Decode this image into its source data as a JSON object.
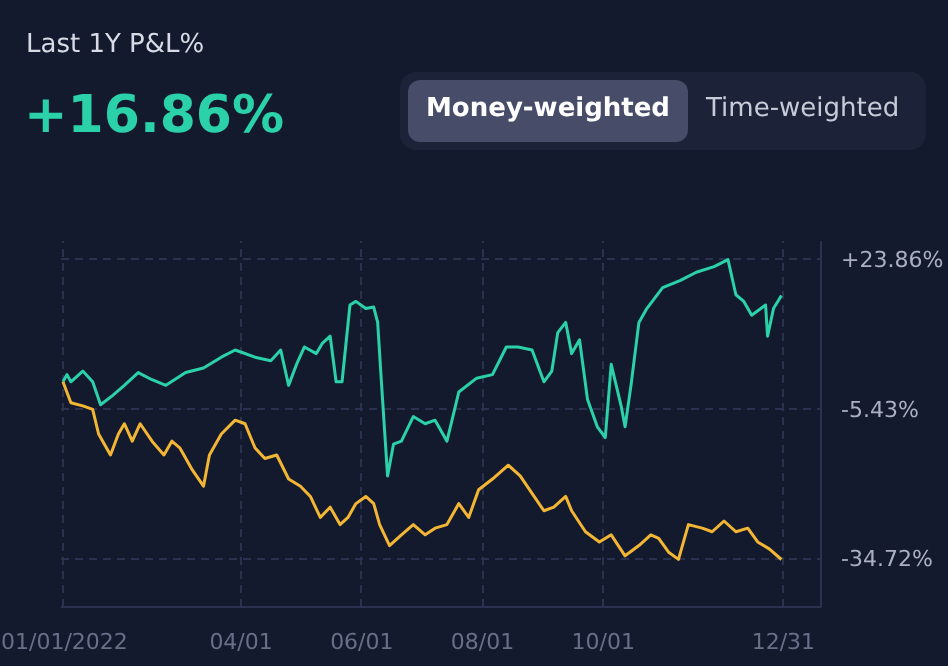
{
  "chart_data": {
    "type": "line",
    "title": "Last 1Y P&L%",
    "subtitle": "+16.86%",
    "annotations": [
      "Money-weighted",
      "Time-weighted"
    ],
    "xlim": [
      "2021-12-31",
      "2023-01-19"
    ],
    "xticks": [
      {
        "value": "2022-01-01",
        "label": "01/01/2022"
      },
      {
        "value": "2022-04-01",
        "label": "04/01"
      },
      {
        "value": "2022-06-01",
        "label": "06/01"
      },
      {
        "value": "2022-08-01",
        "label": "08/01"
      },
      {
        "value": "2022-10-01",
        "label": "10/01"
      },
      {
        "value": "2022-12-31",
        "label": "12/31"
      }
    ],
    "ylim": [
      -44,
      27.5
    ],
    "yticks": [
      {
        "value": 23.86,
        "label": "+23.86%"
      },
      {
        "value": -5.43,
        "label": "-5.43%"
      },
      {
        "value": -34.72,
        "label": "-34.72%"
      }
    ],
    "grid": true,
    "line_style": "solid",
    "marker": "none",
    "series": [
      {
        "color": "#2bd1a8",
        "x": [
          "2022-01-01",
          "2022-01-03",
          "2022-01-05",
          "2022-01-11",
          "2022-01-16",
          "2022-01-20",
          "2022-01-26",
          "2022-02-01",
          "2022-02-08",
          "2022-02-15",
          "2022-02-22",
          "2022-03-04",
          "2022-03-13",
          "2022-03-22",
          "2022-03-29",
          "2022-04-08",
          "2022-04-16",
          "2022-04-21",
          "2022-04-25",
          "2022-04-29",
          "2022-05-03",
          "2022-05-09",
          "2022-05-12",
          "2022-05-16",
          "2022-05-19",
          "2022-05-22",
          "2022-05-26",
          "2022-05-29",
          "2022-06-03",
          "2022-06-07",
          "2022-06-09",
          "2022-06-11",
          "2022-06-14",
          "2022-06-17",
          "2022-06-21",
          "2022-06-27",
          "2022-07-03",
          "2022-07-08",
          "2022-07-14",
          "2022-07-20",
          "2022-07-29",
          "2022-08-06",
          "2022-08-13",
          "2022-08-19",
          "2022-08-26",
          "2022-09-01",
          "2022-09-05",
          "2022-09-08",
          "2022-09-12",
          "2022-09-15",
          "2022-09-19",
          "2022-09-23",
          "2022-09-28",
          "2022-10-02",
          "2022-10-05",
          "2022-10-10",
          "2022-10-12",
          "2022-10-15",
          "2022-10-19",
          "2022-10-23",
          "2022-10-31",
          "2022-11-09",
          "2022-11-17",
          "2022-11-26",
          "2022-12-03",
          "2022-12-07",
          "2022-12-11",
          "2022-12-15",
          "2022-12-22",
          "2022-12-23",
          "2022-12-26",
          "2022-12-30"
        ],
        "values": [
          0,
          1.4,
          0,
          2.1,
          0,
          -4.5,
          -2.7,
          -0.7,
          1.8,
          0.4,
          -0.7,
          1.8,
          2.7,
          4.8,
          6.2,
          4.8,
          4.1,
          6.2,
          -0.7,
          3.4,
          6.8,
          5.5,
          7.5,
          8.9,
          0,
          0,
          15.0,
          15.7,
          14.3,
          14.6,
          11.6,
          -0.7,
          -18.4,
          -12.2,
          -11.6,
          -6.8,
          -8.2,
          -7.5,
          -11.6,
          -2.0,
          0.7,
          1.4,
          6.8,
          6.8,
          6.2,
          0,
          2.1,
          9.6,
          11.6,
          5.5,
          8.2,
          -3.4,
          -8.8,
          -10.9,
          3.4,
          -4.7,
          -8.8,
          -0.7,
          11.6,
          14.3,
          18.4,
          19.8,
          21.4,
          22.5,
          23.86,
          17.0,
          15.7,
          13.0,
          15.0,
          8.9,
          14.3,
          16.86
        ]
      },
      {
        "color": "#f2b634",
        "x": [
          "2022-01-01",
          "2022-01-05",
          "2022-01-11",
          "2022-01-16",
          "2022-01-19",
          "2022-01-25",
          "2022-01-29",
          "2022-02-01",
          "2022-02-05",
          "2022-02-09",
          "2022-02-15",
          "2022-02-21",
          "2022-02-25",
          "2022-03-01",
          "2022-03-07",
          "2022-03-13",
          "2022-03-16",
          "2022-03-22",
          "2022-03-29",
          "2022-04-03",
          "2022-04-08",
          "2022-04-13",
          "2022-04-19",
          "2022-04-25",
          "2022-05-01",
          "2022-05-06",
          "2022-05-11",
          "2022-05-16",
          "2022-05-21",
          "2022-05-25",
          "2022-05-29",
          "2022-06-03",
          "2022-06-07",
          "2022-06-10",
          "2022-06-15",
          "2022-06-21",
          "2022-06-27",
          "2022-07-03",
          "2022-07-08",
          "2022-07-14",
          "2022-07-20",
          "2022-07-25",
          "2022-07-30",
          "2022-08-06",
          "2022-08-14",
          "2022-08-20",
          "2022-08-26",
          "2022-09-01",
          "2022-09-06",
          "2022-09-12",
          "2022-09-15",
          "2022-09-22",
          "2022-09-29",
          "2022-10-05",
          "2022-10-12",
          "2022-10-19",
          "2022-10-25",
          "2022-10-29",
          "2022-11-03",
          "2022-11-08",
          "2022-11-13",
          "2022-11-20",
          "2022-11-25",
          "2022-12-01",
          "2022-12-07",
          "2022-12-13",
          "2022-12-18",
          "2022-12-24",
          "2022-12-30"
        ],
        "values": [
          0,
          -4.1,
          -4.7,
          -5.4,
          -10.2,
          -14.3,
          -10.2,
          -8.2,
          -11.6,
          -8.2,
          -11.6,
          -14.3,
          -11.6,
          -12.9,
          -17.0,
          -20.4,
          -14.3,
          -10.2,
          -7.5,
          -8.2,
          -12.9,
          -15.0,
          -14.3,
          -19.0,
          -20.4,
          -22.4,
          -26.5,
          -24.5,
          -27.9,
          -26.5,
          -23.8,
          -22.4,
          -23.8,
          -27.9,
          -32.0,
          -29.9,
          -27.9,
          -29.9,
          -28.6,
          -27.9,
          -23.8,
          -26.5,
          -21.1,
          -19.0,
          -16.3,
          -18.4,
          -21.8,
          -25.2,
          -24.5,
          -22.4,
          -25.2,
          -29.3,
          -31.3,
          -29.9,
          -34.0,
          -32.0,
          -29.9,
          -30.6,
          -33.3,
          -34.7,
          -27.9,
          -28.6,
          -29.3,
          -27.2,
          -29.3,
          -28.6,
          -31.3,
          -32.7,
          -34.72
        ]
      }
    ]
  }
}
